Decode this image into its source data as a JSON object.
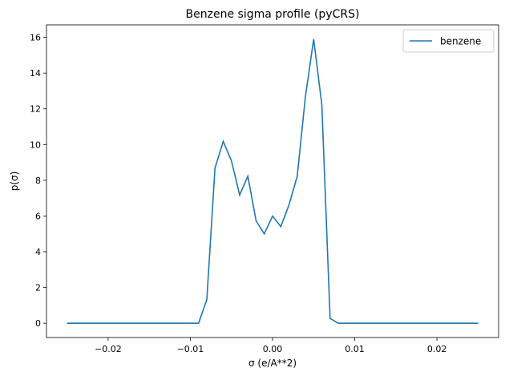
{
  "chart_data": {
    "type": "line",
    "title": "Benzene sigma profile (pyCRS)",
    "xlabel": "σ (e/A**2)",
    "ylabel": "p(σ)",
    "xlim": [
      -0.0275,
      0.0275
    ],
    "ylim": [
      -0.8,
      16.7
    ],
    "xticks": [
      -0.02,
      -0.01,
      0.0,
      0.01,
      0.02
    ],
    "xtick_labels": [
      "−0.02",
      "−0.01",
      "0.00",
      "0.01",
      "0.02"
    ],
    "yticks": [
      0,
      2,
      4,
      6,
      8,
      10,
      12,
      14,
      16
    ],
    "ytick_labels": [
      "0",
      "2",
      "4",
      "6",
      "8",
      "10",
      "12",
      "14",
      "16"
    ],
    "grid": false,
    "legend_position": "top-right",
    "series": [
      {
        "name": "benzene",
        "color": "#1f77b4",
        "x_start": -0.025,
        "x_step": 0.001,
        "values": [
          0,
          0,
          0,
          0,
          0,
          0,
          0,
          0,
          0,
          0,
          0,
          0,
          0,
          0,
          0,
          0,
          0,
          1.32,
          8.68,
          10.18,
          9.09,
          7.18,
          8.23,
          5.73,
          5.0,
          6.0,
          5.41,
          6.62,
          8.23,
          12.68,
          15.9,
          12.23,
          0.27,
          0,
          0,
          0,
          0,
          0,
          0,
          0,
          0,
          0,
          0,
          0,
          0,
          0,
          0,
          0,
          0,
          0,
          0
        ]
      }
    ]
  }
}
